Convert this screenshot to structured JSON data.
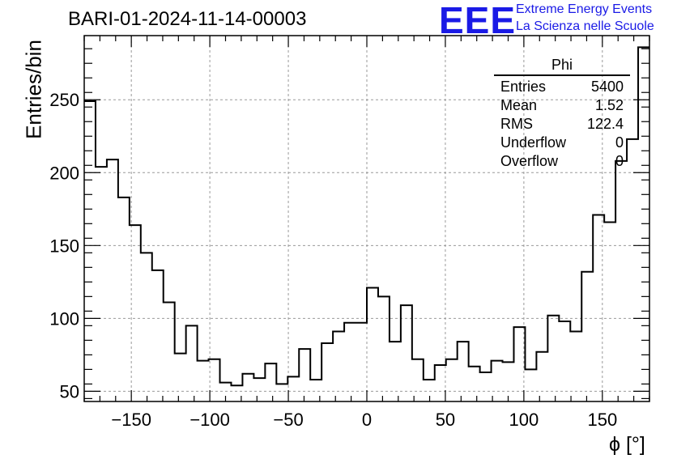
{
  "title": "BARI-01-2024-11-14-00003",
  "logo": {
    "mark": "EEE",
    "line1": "Extreme Energy Events",
    "line2": "La Scienza nelle Scuole"
  },
  "stats_box": {
    "name": "Phi",
    "rows": [
      {
        "label": "Entries",
        "value": "5400"
      },
      {
        "label": "Mean",
        "value": "1.52"
      },
      {
        "label": "RMS",
        "value": "122.4"
      },
      {
        "label": "Underflow",
        "value": "0"
      },
      {
        "label": "Overflow",
        "value": "0"
      }
    ]
  },
  "chart_data": {
    "type": "bar",
    "histogram": true,
    "title": "BARI-01-2024-11-14-00003",
    "xlabel": "ϕ [°]",
    "ylabel": "Entries/bin",
    "xlim": [
      -180,
      180
    ],
    "ylim": [
      43,
      294
    ],
    "grid": true,
    "x_ticks": [
      -150,
      -100,
      -50,
      0,
      50,
      100,
      150
    ],
    "y_ticks": [
      50,
      100,
      150,
      200,
      250
    ],
    "bin_edges_start": -180,
    "bin_width": 7.2,
    "values": [
      249,
      204,
      209,
      183,
      164,
      145,
      133,
      111,
      76,
      95,
      71,
      72,
      56,
      54,
      62,
      59,
      69,
      55,
      60,
      79,
      58,
      83,
      91,
      97,
      97,
      121,
      115,
      84,
      109,
      72,
      58,
      68,
      72,
      84,
      67,
      63,
      71,
      70,
      94,
      65,
      77,
      102,
      98,
      91,
      132,
      171,
      166,
      208,
      223,
      286
    ],
    "line_color": "#000000"
  }
}
